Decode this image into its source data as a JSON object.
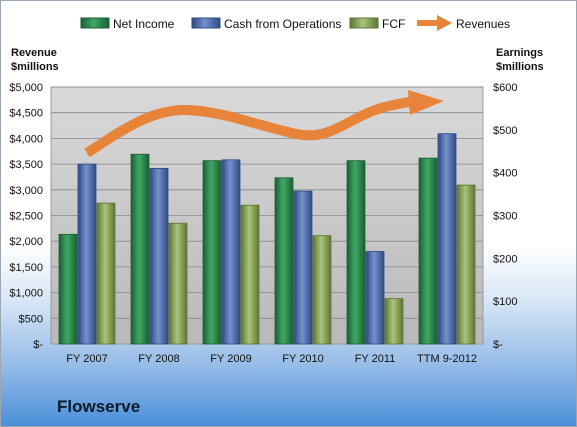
{
  "company": "Flowserve",
  "colors": {
    "net_income": "#2e8b4e",
    "cash_from_operations": "#4f6fae",
    "fcf": "#8fac5a",
    "revenues": "#e8833a",
    "plot_bg": "#c8c8c8"
  },
  "chart_data": {
    "type": "bar",
    "categories": [
      "FY 2007",
      "FY 2008",
      "FY 2009",
      "FY 2010",
      "FY 2011",
      "TTM 9-2012"
    ],
    "series": [
      {
        "name": "Net Income",
        "axis": "right",
        "values": [
          256,
          443,
          428,
          388,
          428,
          434
        ]
      },
      {
        "name": "Cash from Operations",
        "axis": "right",
        "values": [
          420,
          410,
          430,
          357,
          216,
          491
        ]
      },
      {
        "name": "FCF",
        "axis": "right",
        "values": [
          329,
          282,
          324,
          253,
          106,
          371
        ]
      }
    ],
    "trend": {
      "name": "Revenues",
      "style": "arrow",
      "note": "no values shown"
    },
    "left_axis": {
      "title_lines": [
        "Revenue",
        "$millions"
      ],
      "ticks": [
        "$-",
        "$500",
        "$1,000",
        "$1,500",
        "$2,000",
        "$2,500",
        "$3,000",
        "$3,500",
        "$4,000",
        "$4,500",
        "$5,000"
      ],
      "range": [
        0,
        5000
      ]
    },
    "right_axis": {
      "title_lines": [
        "Earnings",
        "$millions"
      ],
      "ticks": [
        "$-",
        "$100",
        "$200",
        "$300",
        "$400",
        "$500",
        "$600"
      ],
      "range": [
        0,
        600
      ]
    },
    "legend": [
      "Net Income",
      "Cash from Operations",
      "FCF",
      "Revenues"
    ],
    "legend_position": "top",
    "grid": true
  }
}
